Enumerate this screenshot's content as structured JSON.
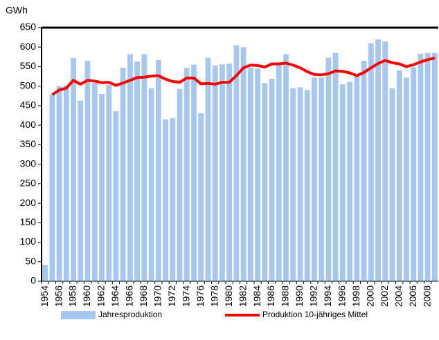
{
  "chart_data": {
    "type": "bar",
    "y_label": "GWh",
    "categories": [
      "1954",
      null,
      "1956",
      null,
      "1958",
      null,
      "1960",
      null,
      "1962",
      null,
      "1964",
      null,
      "1966",
      null,
      "1968",
      null,
      "1970",
      null,
      "1972",
      null,
      "1974",
      null,
      "1976",
      null,
      "1978",
      null,
      "1980",
      null,
      "1982",
      null,
      "1984",
      null,
      "1986",
      null,
      "1988",
      null,
      "1990",
      null,
      "1992",
      null,
      "1994",
      null,
      "1996",
      null,
      "1998",
      null,
      "2000",
      null,
      "2002",
      null,
      "2004",
      null,
      "2006",
      null,
      "2008",
      null
    ],
    "series": [
      {
        "name": "Jahresproduktion",
        "type": "bar",
        "color": "#a6c8f0",
        "values": [
          42,
          478,
          500,
          502,
          572,
          463,
          565,
          508,
          480,
          503,
          436,
          547,
          582,
          563,
          582,
          495,
          567,
          415,
          418,
          493,
          547,
          555,
          431,
          573,
          553,
          556,
          558,
          605,
          600,
          547,
          545,
          508,
          519,
          555,
          582,
          495,
          497,
          490,
          522,
          522,
          573,
          585,
          505,
          511,
          525,
          565,
          610,
          620,
          614,
          495,
          540,
          522,
          548,
          583,
          585,
          585
        ]
      },
      {
        "name": "Produktion 10-jähriges Mittel",
        "type": "line",
        "color": "#ff0000",
        "values": [
          null,
          478,
          490,
          495,
          515,
          505,
          515,
          513,
          509,
          510,
          502,
          508,
          515,
          522,
          523,
          526,
          527,
          518,
          512,
          510,
          521,
          521,
          506,
          507,
          505,
          510,
          510,
          527,
          547,
          554,
          553,
          549,
          557,
          557,
          559,
          554,
          547,
          537,
          530,
          529,
          532,
          539,
          538,
          534,
          527,
          535,
          547,
          558,
          566,
          560,
          557,
          550,
          555,
          562,
          568,
          572
        ]
      }
    ],
    "ylim": [
      0,
      650
    ],
    "yticks": [
      0,
      50,
      100,
      150,
      200,
      250,
      300,
      350,
      400,
      450,
      500,
      550,
      600,
      650
    ]
  }
}
